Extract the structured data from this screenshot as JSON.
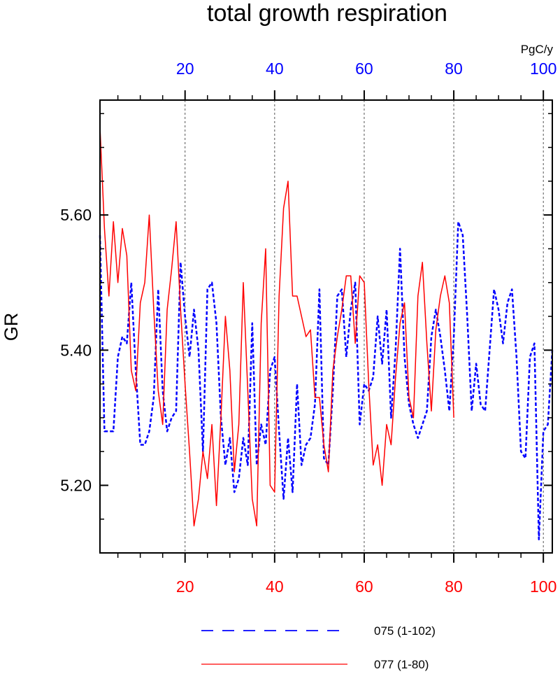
{
  "chart_data": {
    "type": "line",
    "title": "total growth respiration",
    "ylabel": "GR",
    "units": "PgC/y",
    "ylim": [
      5.1,
      5.77
    ],
    "yticks": [
      5.2,
      5.4,
      5.6
    ],
    "ytick_labels": [
      "5.20",
      "5.40",
      "5.60"
    ],
    "top_axis": {
      "color": "#0000ff",
      "xlim": [
        1,
        102
      ],
      "ticks": [
        20,
        40,
        60,
        80,
        100
      ],
      "tick_labels": [
        "20",
        "40",
        "60",
        "80",
        "100"
      ]
    },
    "bottom_axis": {
      "color": "#ff0000",
      "xlim": [
        1,
        102
      ],
      "ticks": [
        20,
        40,
        60,
        80,
        100
      ],
      "tick_labels": [
        "20",
        "40",
        "60",
        "80",
        "100"
      ]
    },
    "gridlines_x": [
      20,
      40,
      60,
      80,
      100
    ],
    "series": [
      {
        "name": "075 (1-102)",
        "color": "#0000ff",
        "style": "dashed",
        "y": [
          5.57,
          5.28,
          5.28,
          5.28,
          5.39,
          5.42,
          5.41,
          5.5,
          5.37,
          5.26,
          5.26,
          5.28,
          5.33,
          5.49,
          5.34,
          5.28,
          5.3,
          5.31,
          5.53,
          5.45,
          5.39,
          5.46,
          5.4,
          5.25,
          5.49,
          5.5,
          5.44,
          5.3,
          5.23,
          5.27,
          5.19,
          5.21,
          5.27,
          5.23,
          5.44,
          5.23,
          5.29,
          5.26,
          5.37,
          5.39,
          5.28,
          5.18,
          5.27,
          5.19,
          5.35,
          5.23,
          5.26,
          5.27,
          5.32,
          5.49,
          5.24,
          5.23,
          5.34,
          5.48,
          5.49,
          5.39,
          5.46,
          5.5,
          5.29,
          5.35,
          5.34,
          5.36,
          5.45,
          5.38,
          5.46,
          5.3,
          5.4,
          5.55,
          5.39,
          5.32,
          5.29,
          5.27,
          5.29,
          5.31,
          5.42,
          5.46,
          5.42,
          5.37,
          5.31,
          5.42,
          5.59,
          5.57,
          5.45,
          5.31,
          5.38,
          5.32,
          5.31,
          5.4,
          5.49,
          5.46,
          5.41,
          5.47,
          5.49,
          5.39,
          5.25,
          5.24,
          5.39,
          5.41,
          5.12,
          5.28,
          5.29,
          5.4
        ]
      },
      {
        "name": "077 (1-80)",
        "color": "#ff0000",
        "style": "solid",
        "y": [
          5.73,
          5.58,
          5.48,
          5.59,
          5.5,
          5.58,
          5.54,
          5.37,
          5.34,
          5.47,
          5.5,
          5.6,
          5.46,
          5.34,
          5.29,
          5.46,
          5.52,
          5.59,
          5.46,
          5.35,
          5.25,
          5.14,
          5.18,
          5.25,
          5.21,
          5.29,
          5.17,
          5.3,
          5.45,
          5.37,
          5.22,
          5.29,
          5.5,
          5.34,
          5.18,
          5.14,
          5.44,
          5.55,
          5.2,
          5.19,
          5.48,
          5.61,
          5.65,
          5.48,
          5.48,
          5.45,
          5.42,
          5.43,
          5.33,
          5.33,
          5.26,
          5.22,
          5.37,
          5.42,
          5.46,
          5.51,
          5.51,
          5.41,
          5.51,
          5.5,
          5.35,
          5.23,
          5.26,
          5.2,
          5.29,
          5.26,
          5.36,
          5.44,
          5.47,
          5.33,
          5.3,
          5.48,
          5.53,
          5.41,
          5.31,
          5.43,
          5.48,
          5.51,
          5.47,
          5.3
        ]
      }
    ],
    "legend": {
      "placement": "bottom"
    }
  }
}
